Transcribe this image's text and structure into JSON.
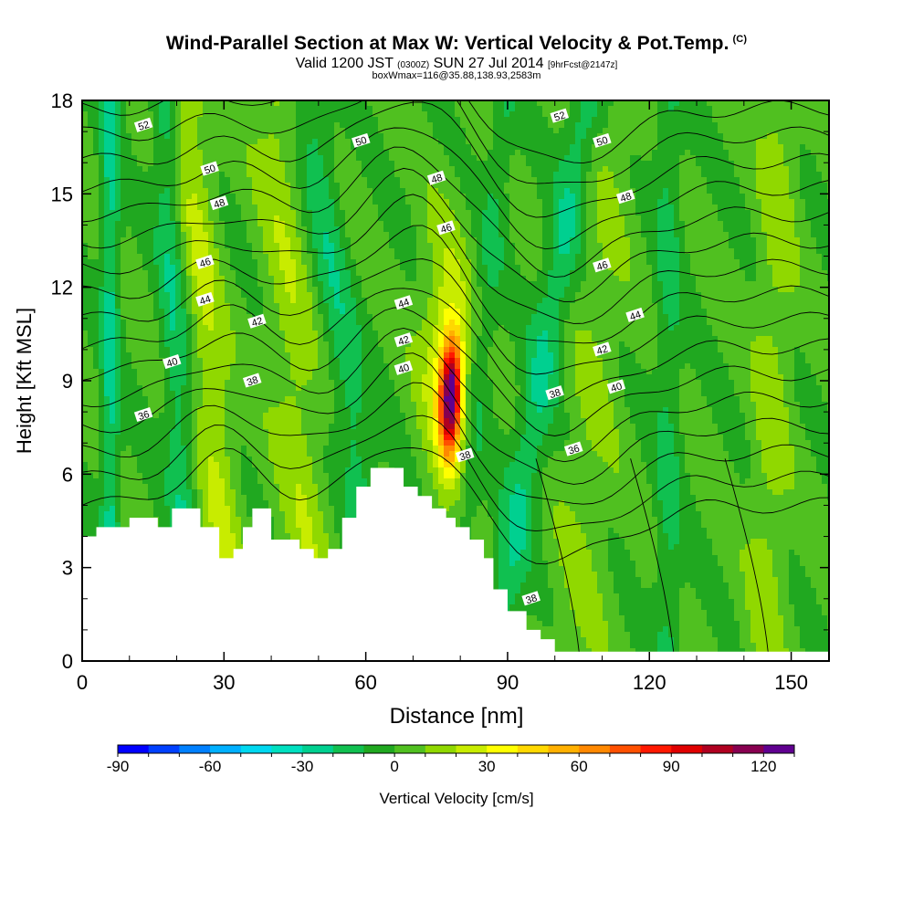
{
  "header": {
    "title_main": "Wind-Parallel Section at Max W: Vertical Velocity & Pot.Temp.",
    "title_mark": "(C)",
    "subtitle_a": "Valid 1200 JST",
    "subtitle_b": "(0300Z)",
    "subtitle_c": "SUN 27 Jul 2014",
    "subtitle_d": "[9hrFcst@2147z]",
    "info": "boxWmax=116@35.88,138.93,2583m"
  },
  "chart_data": {
    "type": "heatmap",
    "title": "Wind-Parallel Section at Max W: Vertical Velocity & Pot.Temp.",
    "xlabel": "Distance [nm]",
    "ylabel": "Height [Kft MSL]",
    "xlim": [
      0,
      158
    ],
    "ylim": [
      0,
      18
    ],
    "x_ticks": [
      0,
      30,
      60,
      90,
      120,
      150
    ],
    "y_ticks": [
      0,
      3,
      6,
      9,
      12,
      15,
      18
    ],
    "colorbar": {
      "label": "Vertical Velocity [cm/s]",
      "range": [
        -90,
        130
      ],
      "step": 10,
      "tick_labels": [
        -90,
        -60,
        -30,
        0,
        30,
        60,
        90,
        120
      ],
      "colors": [
        "#0000ff",
        "#0040ff",
        "#0080ff",
        "#00b0ff",
        "#00d8f0",
        "#00e0c0",
        "#00d090",
        "#10c050",
        "#20a820",
        "#50c020",
        "#90d800",
        "#c8ec00",
        "#ffff00",
        "#ffd800",
        "#ffb000",
        "#ff8800",
        "#ff5000",
        "#ff1800",
        "#e00000",
        "#b00020",
        "#880050",
        "#600090"
      ]
    },
    "series": [
      {
        "name": "Vertical Velocity [cm/s]",
        "max_value": 116,
        "max_location_nm": 78,
        "max_height_kft": 8.5
      },
      {
        "name": "Pot.Temp.",
        "contour_labels": [
          36,
          38,
          40,
          42,
          44,
          46,
          48,
          50,
          52
        ]
      }
    ],
    "contour_label_points": [
      {
        "value": 52,
        "x": 13,
        "y": 17.2
      },
      {
        "value": 50,
        "x": 27,
        "y": 15.8
      },
      {
        "value": 48,
        "x": 29,
        "y": 14.7
      },
      {
        "value": 46,
        "x": 26,
        "y": 12.8
      },
      {
        "value": 44,
        "x": 26,
        "y": 11.6
      },
      {
        "value": 42,
        "x": 37,
        "y": 10.9
      },
      {
        "value": 40,
        "x": 19,
        "y": 9.6
      },
      {
        "value": 38,
        "x": 36,
        "y": 9.0
      },
      {
        "value": 36,
        "x": 13,
        "y": 7.9
      },
      {
        "value": 50,
        "x": 59,
        "y": 16.7
      },
      {
        "value": 48,
        "x": 75,
        "y": 15.5
      },
      {
        "value": 46,
        "x": 77,
        "y": 13.9
      },
      {
        "value": 44,
        "x": 68,
        "y": 11.5
      },
      {
        "value": 42,
        "x": 68,
        "y": 10.3
      },
      {
        "value": 40,
        "x": 68,
        "y": 9.4
      },
      {
        "value": 38,
        "x": 81,
        "y": 6.6
      },
      {
        "value": 52,
        "x": 101,
        "y": 17.5
      },
      {
        "value": 50,
        "x": 110,
        "y": 16.7
      },
      {
        "value": 48,
        "x": 115,
        "y": 14.9
      },
      {
        "value": 46,
        "x": 110,
        "y": 12.7
      },
      {
        "value": 44,
        "x": 117,
        "y": 11.1
      },
      {
        "value": 42,
        "x": 110,
        "y": 10.0
      },
      {
        "value": 40,
        "x": 113,
        "y": 8.8
      },
      {
        "value": 38,
        "x": 100,
        "y": 8.6
      },
      {
        "value": 36,
        "x": 104,
        "y": 6.8
      },
      {
        "value": 38,
        "x": 95,
        "y": 2.0
      }
    ]
  },
  "colors": {
    "frame": "#000000",
    "terrain": "#ffffff",
    "contour": "#000000"
  }
}
